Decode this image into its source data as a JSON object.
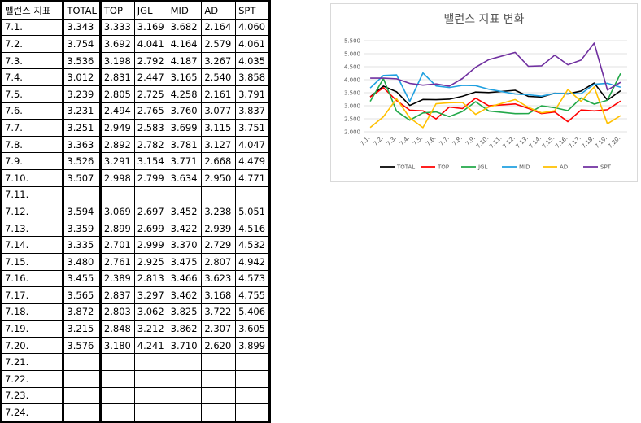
{
  "table": {
    "headers": [
      "밸런스 지표",
      "TOTAL",
      "TOP",
      "JGL",
      "MID",
      "AD",
      "SPT"
    ],
    "rows": [
      [
        "7.1.",
        "3.343",
        "3.333",
        "3.169",
        "3.682",
        "2.164",
        "4.060"
      ],
      [
        "7.2.",
        "3.754",
        "3.692",
        "4.041",
        "4.164",
        "2.579",
        "4.061"
      ],
      [
        "7.3.",
        "3.536",
        "3.198",
        "2.792",
        "4.187",
        "3.267",
        "4.035"
      ],
      [
        "7.4.",
        "3.012",
        "2.831",
        "2.447",
        "3.165",
        "2.540",
        "3.858"
      ],
      [
        "7.5.",
        "3.239",
        "2.805",
        "2.725",
        "4.258",
        "2.161",
        "3.791"
      ],
      [
        "7.6.",
        "3.231",
        "2.494",
        "2.765",
        "3.760",
        "3.077",
        "3.837"
      ],
      [
        "7.7.",
        "3.251",
        "2.949",
        "2.583",
        "3.699",
        "3.115",
        "3.751"
      ],
      [
        "7.8.",
        "3.363",
        "2.892",
        "2.782",
        "3.781",
        "3.127",
        "4.047"
      ],
      [
        "7.9.",
        "3.526",
        "3.291",
        "3.154",
        "3.771",
        "2.668",
        "4.479"
      ],
      [
        "7.10.",
        "3.507",
        "2.998",
        "2.799",
        "3.634",
        "2.950",
        "4.771"
      ],
      [
        "7.11.",
        "",
        "",
        "",
        "",
        "",
        ""
      ],
      [
        "7.12.",
        "3.594",
        "3.069",
        "2.697",
        "3.452",
        "3.238",
        "5.051"
      ],
      [
        "7.13.",
        "3.359",
        "2.899",
        "2.699",
        "3.422",
        "2.939",
        "4.516"
      ],
      [
        "7.14.",
        "3.335",
        "2.701",
        "2.999",
        "3.370",
        "2.729",
        "4.532"
      ],
      [
        "7.15.",
        "3.480",
        "2.761",
        "2.925",
        "3.475",
        "2.807",
        "4.942"
      ],
      [
        "7.16.",
        "3.455",
        "2.389",
        "2.813",
        "3.466",
        "3.623",
        "4.573"
      ],
      [
        "7.17.",
        "3.565",
        "2.837",
        "3.297",
        "3.462",
        "3.168",
        "4.755"
      ],
      [
        "7.18.",
        "3.872",
        "2.803",
        "3.062",
        "3.825",
        "3.722",
        "5.406"
      ],
      [
        "7.19.",
        "3.215",
        "2.848",
        "3.212",
        "3.862",
        "2.307",
        "3.605"
      ],
      [
        "7.20.",
        "3.576",
        "3.180",
        "4.241",
        "3.710",
        "2.620",
        "3.899"
      ],
      [
        "7.21.",
        "",
        "",
        "",
        "",
        "",
        ""
      ],
      [
        "7.22.",
        "",
        "",
        "",
        "",
        "",
        ""
      ],
      [
        "7.23.",
        "",
        "",
        "",
        "",
        "",
        ""
      ],
      [
        "7.24.",
        "",
        "",
        "",
        "",
        "",
        ""
      ]
    ]
  },
  "chart_data": {
    "type": "line",
    "title": "밸런스 지표 변화",
    "categories": [
      "7.1.",
      "7.2.",
      "7.3.",
      "7.4.",
      "7.5.",
      "7.6.",
      "7.7.",
      "7.8.",
      "7.9.",
      "7.10.",
      "7.11.",
      "7.12.",
      "7.13.",
      "7.14.",
      "7.15.",
      "7.16.",
      "7.17.",
      "7.18.",
      "7.19.",
      "7.20."
    ],
    "ylim": [
      2.0,
      5.5
    ],
    "yticks": [
      "2.000",
      "2.500",
      "3.000",
      "3.500",
      "4.000",
      "4.500",
      "5.000",
      "5.500"
    ],
    "grid": true,
    "legend": "bottom",
    "series": [
      {
        "name": "TOTAL",
        "color": "#000000",
        "values": [
          3.343,
          3.754,
          3.536,
          3.012,
          3.239,
          3.231,
          3.251,
          3.363,
          3.526,
          3.507,
          null,
          3.594,
          3.359,
          3.335,
          3.48,
          3.455,
          3.565,
          3.872,
          3.215,
          3.576
        ]
      },
      {
        "name": "TOP",
        "color": "#ff0000",
        "values": [
          3.333,
          3.692,
          3.198,
          2.831,
          2.805,
          2.494,
          2.949,
          2.892,
          3.291,
          2.998,
          null,
          3.069,
          2.899,
          2.701,
          2.761,
          2.389,
          2.837,
          2.803,
          2.848,
          3.18
        ]
      },
      {
        "name": "JGL",
        "color": "#22a849",
        "values": [
          3.169,
          4.041,
          2.792,
          2.447,
          2.725,
          2.765,
          2.583,
          2.782,
          3.154,
          2.799,
          null,
          2.697,
          2.699,
          2.999,
          2.925,
          2.813,
          3.297,
          3.062,
          3.212,
          4.241
        ]
      },
      {
        "name": "MID",
        "color": "#20a0e0",
        "values": [
          3.682,
          4.164,
          4.187,
          3.165,
          4.258,
          3.76,
          3.699,
          3.781,
          3.771,
          3.634,
          null,
          3.452,
          3.422,
          3.37,
          3.475,
          3.466,
          3.462,
          3.825,
          3.862,
          3.71
        ]
      },
      {
        "name": "AD",
        "color": "#ffc000",
        "values": [
          2.164,
          2.579,
          3.267,
          2.54,
          2.161,
          3.077,
          3.115,
          3.127,
          2.668,
          2.95,
          null,
          3.238,
          2.939,
          2.729,
          2.807,
          3.623,
          3.168,
          3.722,
          2.307,
          2.62
        ]
      },
      {
        "name": "SPT",
        "color": "#7030a0",
        "values": [
          4.06,
          4.061,
          4.035,
          3.858,
          3.791,
          3.837,
          3.751,
          4.047,
          4.479,
          4.771,
          null,
          5.051,
          4.516,
          4.532,
          4.942,
          4.573,
          4.755,
          5.406,
          3.605,
          3.899
        ]
      }
    ]
  }
}
